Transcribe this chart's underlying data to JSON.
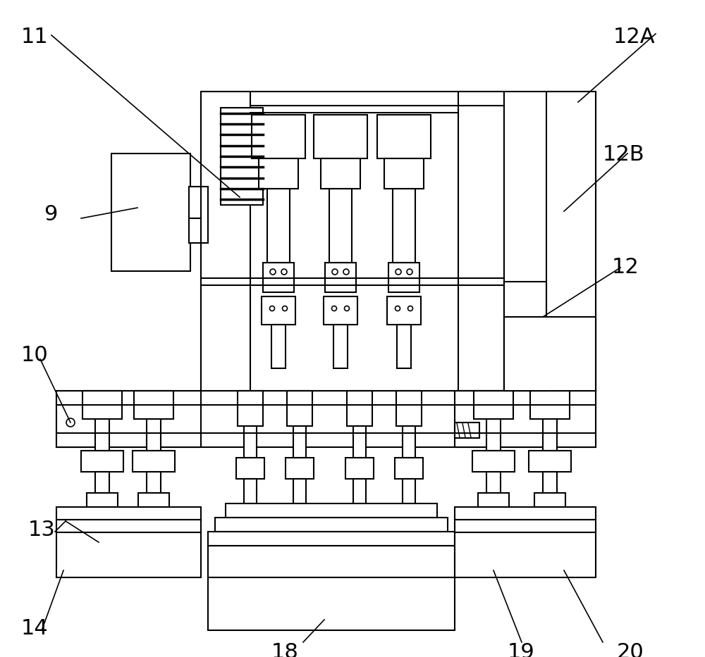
{
  "bg_color": "#ffffff",
  "lc": "#000000",
  "lw": 1.5,
  "lw_thin": 1.0
}
